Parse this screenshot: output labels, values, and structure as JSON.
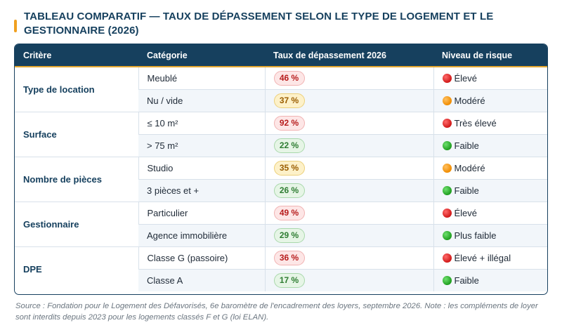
{
  "title": "TABLEAU COMPARATIF — TAUX DE DÉPASSEMENT SELON LE TYPE DE LOGEMENT ET LE GESTIONNAIRE (2026)",
  "headers": {
    "criterion": "Critère",
    "category": "Catégorie",
    "rate": "Taux de dépassement 2026",
    "risk": "Niveau de risque"
  },
  "groups": [
    {
      "criterion": "Type de location",
      "rows": [
        {
          "category": "Meublé",
          "rate": "46 %",
          "rate_color": "red",
          "risk_dot": "red-circle-icon",
          "risk": "Élevé"
        },
        {
          "category": "Nu / vide",
          "rate": "37 %",
          "rate_color": "amber",
          "risk_dot": "orange-circle-icon",
          "risk": "Modéré"
        }
      ]
    },
    {
      "criterion": "Surface",
      "rows": [
        {
          "category": "≤ 10 m²",
          "rate": "92 %",
          "rate_color": "red",
          "risk_dot": "red-circle-icon",
          "risk": "Très élevé"
        },
        {
          "category": "> 75 m²",
          "rate": "22 %",
          "rate_color": "green",
          "risk_dot": "green-circle-icon",
          "risk": "Faible"
        }
      ]
    },
    {
      "criterion": "Nombre de pièces",
      "rows": [
        {
          "category": "Studio",
          "rate": "35 %",
          "rate_color": "amber",
          "risk_dot": "orange-circle-icon",
          "risk": "Modéré"
        },
        {
          "category": "3 pièces et +",
          "rate": "26 %",
          "rate_color": "green",
          "risk_dot": "green-circle-icon",
          "risk": "Faible"
        }
      ]
    },
    {
      "criterion": "Gestionnaire",
      "rows": [
        {
          "category": "Particulier",
          "rate": "49 %",
          "rate_color": "red",
          "risk_dot": "red-circle-icon",
          "risk": "Élevé"
        },
        {
          "category": "Agence immobilière",
          "rate": "29 %",
          "rate_color": "green",
          "risk_dot": "green-circle-icon",
          "risk": "Plus faible"
        }
      ]
    },
    {
      "criterion": "DPE",
      "rows": [
        {
          "category": "Classe G (passoire)",
          "rate": "36 %",
          "rate_color": "red",
          "risk_dot": "red-circle-icon",
          "risk": "Élevé + illégal"
        },
        {
          "category": "Classe A",
          "rate": "17 %",
          "rate_color": "green",
          "risk_dot": "green-circle-icon",
          "risk": "Faible"
        }
      ]
    }
  ],
  "colors": {
    "header_bg": "#16405e",
    "accent": "#e4a730",
    "red": "#d01818",
    "orange": "#f08c00",
    "green": "#1f9e1f"
  },
  "source_note": "Source : Fondation pour le Logement des Défavorisés, 6e baromètre de l'encadrement des loyers, septembre 2026. Note : les compléments de loyer sont interdits depuis 2023 pour les logements classés F et G (loi ELAN)."
}
